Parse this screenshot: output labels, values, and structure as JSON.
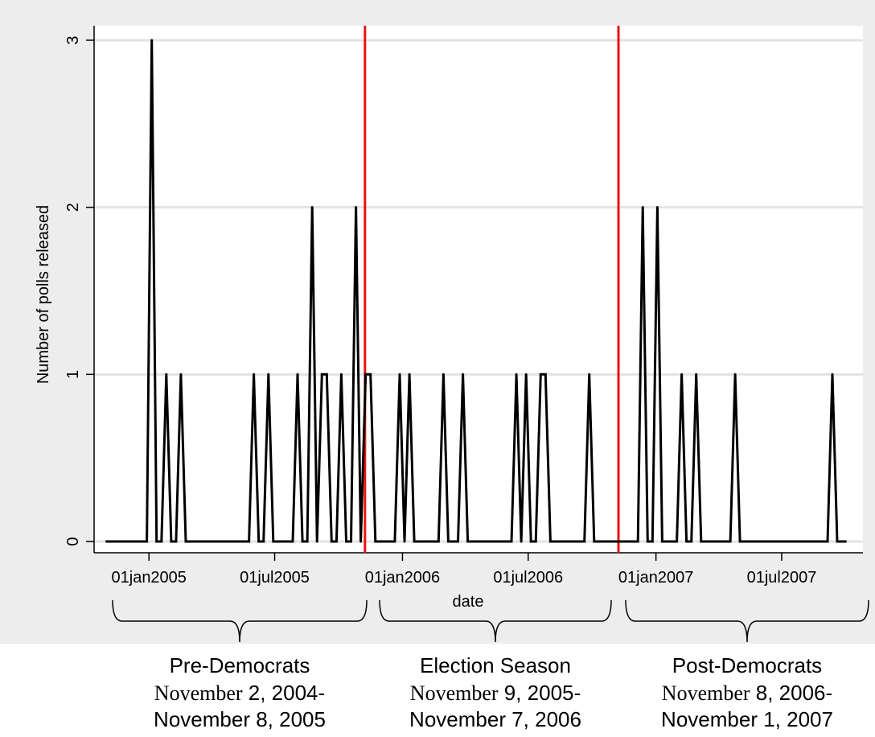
{
  "chart_data": {
    "type": "line",
    "title": "",
    "xlabel": "date",
    "ylabel": "Number of polls released",
    "ylim": [
      0,
      3
    ],
    "xlim": [
      "2004-10-14",
      "2007-10-26"
    ],
    "y_ticks": [
      0,
      1,
      2,
      3
    ],
    "x_ticks": [
      {
        "date": "2005-01-01",
        "label": "01jan2005"
      },
      {
        "date": "2005-07-01",
        "label": "01jul2005"
      },
      {
        "date": "2006-01-01",
        "label": "01jan2006"
      },
      {
        "date": "2006-07-01",
        "label": "01jul2006"
      },
      {
        "date": "2007-01-01",
        "label": "01jan2007"
      },
      {
        "date": "2007-07-01",
        "label": "01jul2007"
      }
    ],
    "grid": "horizontal",
    "line_color": "#000000",
    "series": [
      {
        "points": [
          [
            "2004-11-01",
            0
          ],
          [
            "2004-12-15",
            0
          ],
          [
            "2004-12-22",
            0
          ],
          [
            "2004-12-29",
            0
          ],
          [
            "2005-01-05",
            3
          ],
          [
            "2005-01-12",
            0
          ],
          [
            "2005-01-19",
            0
          ],
          [
            "2005-01-26",
            1
          ],
          [
            "2005-02-02",
            0
          ],
          [
            "2005-02-09",
            0
          ],
          [
            "2005-02-16",
            1
          ],
          [
            "2005-02-23",
            0
          ],
          [
            "2005-05-25",
            0
          ],
          [
            "2005-06-01",
            1
          ],
          [
            "2005-06-08",
            0
          ],
          [
            "2005-06-15",
            0
          ],
          [
            "2005-06-22",
            1
          ],
          [
            "2005-06-29",
            0
          ],
          [
            "2005-07-27",
            0
          ],
          [
            "2005-08-03",
            1
          ],
          [
            "2005-08-10",
            0
          ],
          [
            "2005-08-17",
            0
          ],
          [
            "2005-08-24",
            2
          ],
          [
            "2005-08-31",
            0
          ],
          [
            "2005-09-07",
            1
          ],
          [
            "2005-09-14",
            1
          ],
          [
            "2005-09-21",
            0
          ],
          [
            "2005-09-28",
            0
          ],
          [
            "2005-10-05",
            1
          ],
          [
            "2005-10-12",
            0
          ],
          [
            "2005-10-19",
            0
          ],
          [
            "2005-10-26",
            2
          ],
          [
            "2005-11-02",
            0
          ],
          [
            "2005-11-09",
            1
          ],
          [
            "2005-11-16",
            1
          ],
          [
            "2005-11-23",
            0
          ],
          [
            "2005-12-21",
            0
          ],
          [
            "2005-12-28",
            1
          ],
          [
            "2006-01-04",
            0
          ],
          [
            "2006-01-11",
            1
          ],
          [
            "2006-01-18",
            0
          ],
          [
            "2006-02-22",
            0
          ],
          [
            "2006-03-01",
            1
          ],
          [
            "2006-03-08",
            0
          ],
          [
            "2006-03-22",
            0
          ],
          [
            "2006-03-29",
            1
          ],
          [
            "2006-04-05",
            0
          ],
          [
            "2006-06-07",
            0
          ],
          [
            "2006-06-14",
            1
          ],
          [
            "2006-06-21",
            0
          ],
          [
            "2006-06-28",
            1
          ],
          [
            "2006-07-05",
            0
          ],
          [
            "2006-07-12",
            0
          ],
          [
            "2006-07-19",
            1
          ],
          [
            "2006-07-26",
            1
          ],
          [
            "2006-08-02",
            0
          ],
          [
            "2006-09-20",
            0
          ],
          [
            "2006-09-27",
            1
          ],
          [
            "2006-10-04",
            0
          ],
          [
            "2006-12-06",
            0
          ],
          [
            "2006-12-13",
            2
          ],
          [
            "2006-12-20",
            0
          ],
          [
            "2006-12-27",
            0
          ],
          [
            "2007-01-03",
            2
          ],
          [
            "2007-01-10",
            0
          ],
          [
            "2007-01-31",
            0
          ],
          [
            "2007-02-07",
            1
          ],
          [
            "2007-02-14",
            0
          ],
          [
            "2007-02-21",
            0
          ],
          [
            "2007-02-28",
            1
          ],
          [
            "2007-03-07",
            0
          ],
          [
            "2007-04-18",
            0
          ],
          [
            "2007-04-25",
            1
          ],
          [
            "2007-05-02",
            0
          ],
          [
            "2007-09-05",
            0
          ],
          [
            "2007-09-12",
            1
          ],
          [
            "2007-09-19",
            0
          ],
          [
            "2007-10-01",
            0
          ]
        ]
      }
    ],
    "vertical_markers": [
      {
        "date": "2005-11-08",
        "color": "#ee1111"
      },
      {
        "date": "2006-11-08",
        "color": "#ee1111"
      }
    ],
    "periods": [
      {
        "name": "Pre-Democrats",
        "from_label": "November 2, 2004-",
        "to_label": "November 8, 2005",
        "start": "2004-11-02",
        "end": "2005-11-08"
      },
      {
        "name": "Election Season",
        "from_label": "November 9, 2005-",
        "to_label": "November 7, 2006",
        "start": "2005-11-09",
        "end": "2006-11-07"
      },
      {
        "name": "Post-Democrats",
        "from_label": "November 8, 2006-",
        "to_label": "November 1, 2007",
        "start": "2006-11-08",
        "end": "2007-11-01"
      }
    ]
  }
}
